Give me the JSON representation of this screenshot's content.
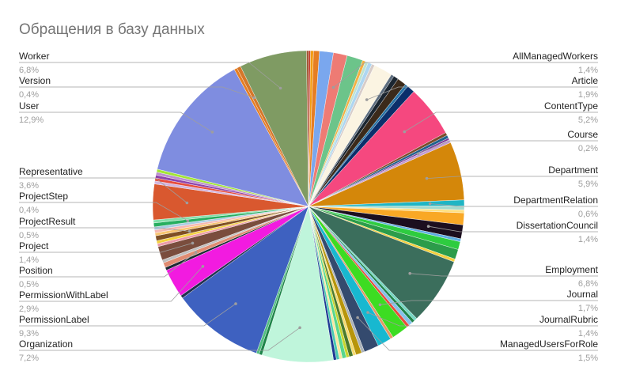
{
  "chart_data": {
    "type": "pie",
    "title": "Обращения в базу данных",
    "slices": [
      {
        "name": "",
        "value": 0.2,
        "color": "#c0392b"
      },
      {
        "name": "",
        "value": 0.3,
        "color": "#f39c12"
      },
      {
        "name": "",
        "value": 0.6,
        "color": "#e67e22"
      },
      {
        "name": "",
        "value": 1.4,
        "color": "#7aa7ee"
      },
      {
        "name": "AllManagedWorkers",
        "value": 1.4,
        "color": "#ee7b74",
        "label": "1,4%"
      },
      {
        "name": "",
        "value": 1.6,
        "color": "#6cc48a"
      },
      {
        "name": "",
        "value": 0.3,
        "color": "#f5b041"
      },
      {
        "name": "",
        "value": 0.3,
        "color": "#bfe3d0"
      },
      {
        "name": "",
        "value": 0.4,
        "color": "#aed6f1"
      },
      {
        "name": "",
        "value": 0.3,
        "color": "#d7ccc8"
      },
      {
        "name": "Article",
        "value": 1.9,
        "color": "#fbf4e2",
        "label": "1,9%"
      },
      {
        "name": "",
        "value": 0.3,
        "color": "#5d6d7e"
      },
      {
        "name": "",
        "value": 0.5,
        "color": "#1b2631"
      },
      {
        "name": "",
        "value": 0.9,
        "color": "#3b2a1a"
      },
      {
        "name": "",
        "value": 0.3,
        "color": "#2874a6"
      },
      {
        "name": "",
        "value": 0.8,
        "color": "#0b2f6b"
      },
      {
        "name": "ContentType",
        "value": 5.2,
        "color": "#f5487f",
        "label": "5,2%"
      },
      {
        "name": "",
        "value": 0.3,
        "color": "#7b4b2a"
      },
      {
        "name": "",
        "value": 0.3,
        "color": "#1f618d"
      },
      {
        "name": "Course",
        "value": 0.2,
        "color": "#7d3c98",
        "label": "0,2%"
      },
      {
        "name": "",
        "value": 0.3,
        "color": "#c39bd3"
      },
      {
        "name": "Department",
        "value": 5.9,
        "color": "#d4870a",
        "label": "5,9%"
      },
      {
        "name": "DepartmentRelation",
        "value": 0.6,
        "color": "#1fb5c4",
        "label": "0,6%"
      },
      {
        "name": "",
        "value": 0.4,
        "color": "#a2d9ce"
      },
      {
        "name": "",
        "value": 0.3,
        "color": "#ffe082"
      },
      {
        "name": "",
        "value": 1.2,
        "color": "#f9a825"
      },
      {
        "name": "DissertationCouncil",
        "value": 1.4,
        "color": "#1c0f1f",
        "label": "1,4%"
      },
      {
        "name": "",
        "value": 0.3,
        "color": "#5dade2"
      },
      {
        "name": "",
        "value": 0.8,
        "color": "#2ecc40"
      },
      {
        "name": "",
        "value": 1.0,
        "color": "#2c9c4a"
      },
      {
        "name": "",
        "value": 0.3,
        "color": "#f4d03f"
      },
      {
        "name": "Employment",
        "value": 6.8,
        "color": "#3b6e5c",
        "label": "6,8%"
      },
      {
        "name": "",
        "value": 0.3,
        "color": "#76d7c4"
      },
      {
        "name": "",
        "value": 0.3,
        "color": "#1e8449"
      },
      {
        "name": "",
        "value": 0.4,
        "color": "#85c1e9"
      },
      {
        "name": "",
        "value": 0.3,
        "color": "#e74c3c"
      },
      {
        "name": "Journal",
        "value": 1.7,
        "color": "#3ddc22",
        "label": "1,7%"
      },
      {
        "name": "",
        "value": 0.3,
        "color": "#e59866"
      },
      {
        "name": "JournalRubric",
        "value": 1.4,
        "color": "#18b8d0",
        "label": "1,4%"
      },
      {
        "name": "ManagedUsersForRole",
        "value": 1.5,
        "color": "#344a6e",
        "label": "1,5%"
      },
      {
        "name": "",
        "value": 0.3,
        "color": "#abb2b9"
      },
      {
        "name": "",
        "value": 0.6,
        "color": "#b7950b"
      },
      {
        "name": "",
        "value": 0.3,
        "color": "#f7dc6f"
      },
      {
        "name": "",
        "value": 0.4,
        "color": "#4a7a2c"
      },
      {
        "name": "",
        "value": 0.3,
        "color": "#c7d52d"
      },
      {
        "name": "",
        "value": 0.4,
        "color": "#58d68d"
      },
      {
        "name": "",
        "value": 0.3,
        "color": "#f9e79f"
      },
      {
        "name": "",
        "value": 0.3,
        "color": "#48c9b0"
      },
      {
        "name": "",
        "value": 0.3,
        "color": "#1f3a93"
      },
      {
        "name": "Organization",
        "value": 7.2,
        "color": "#bff5db",
        "label": "7,2%"
      },
      {
        "name": "",
        "value": 0.3,
        "color": "#1e8449"
      },
      {
        "name": "",
        "value": 0.3,
        "color": "#52be80"
      },
      {
        "name": "PermissionLabel",
        "value": 9.3,
        "color": "#3e61c0",
        "label": "9,3%"
      },
      {
        "name": "",
        "value": 0.3,
        "color": "#21304f"
      },
      {
        "name": "PermissionWithLabel",
        "value": 2.9,
        "color": "#f21be0",
        "label": "2,9%"
      },
      {
        "name": "",
        "value": 0.3,
        "color": "#1c2833"
      },
      {
        "name": "Position",
        "value": 0.5,
        "color": "#e08c72",
        "label": "0,5%"
      },
      {
        "name": "",
        "value": 0.3,
        "color": "#c0c0c0"
      },
      {
        "name": "Project",
        "value": 1.4,
        "color": "#7a4d3d",
        "label": "1,4%"
      },
      {
        "name": "",
        "value": 0.3,
        "color": "#eb9aa8"
      },
      {
        "name": "",
        "value": 0.3,
        "color": "#f4d03f"
      },
      {
        "name": "ProjectResult",
        "value": 0.5,
        "color": "#7f4f24",
        "label": "0,5%"
      },
      {
        "name": "",
        "value": 0.3,
        "color": "#f8c471"
      },
      {
        "name": "",
        "value": 0.3,
        "color": "#f5b7b1"
      },
      {
        "name": "",
        "value": 0.3,
        "color": "#a9cce3"
      },
      {
        "name": "ProjectStep",
        "value": 0.4,
        "color": "#27ae60",
        "label": "0,4%"
      },
      {
        "name": "",
        "value": 0.3,
        "color": "#82e0aa"
      },
      {
        "name": "Representative",
        "value": 3.6,
        "color": "#d9582f",
        "label": "3,6%"
      },
      {
        "name": "",
        "value": 0.3,
        "color": "#d2b4de"
      },
      {
        "name": "",
        "value": 0.3,
        "color": "#e74c3c"
      },
      {
        "name": "",
        "value": 0.3,
        "color": "#8e44ad"
      },
      {
        "name": "",
        "value": 0.3,
        "color": "#bb8fce"
      },
      {
        "name": "",
        "value": 0.3,
        "color": "#a3e635"
      },
      {
        "name": "User",
        "value": 12.9,
        "color": "#7f8de0",
        "label": "12,9%"
      },
      {
        "name": "",
        "value": 0.3,
        "color": "#e67e22"
      },
      {
        "name": "Version",
        "value": 0.4,
        "color": "#d5772a",
        "label": "0,4%"
      },
      {
        "name": "Worker",
        "value": 6.8,
        "color": "#7f9b63",
        "label": "6,8%"
      },
      {
        "name": "",
        "value": 0.2,
        "color": "#a0522d"
      }
    ]
  }
}
